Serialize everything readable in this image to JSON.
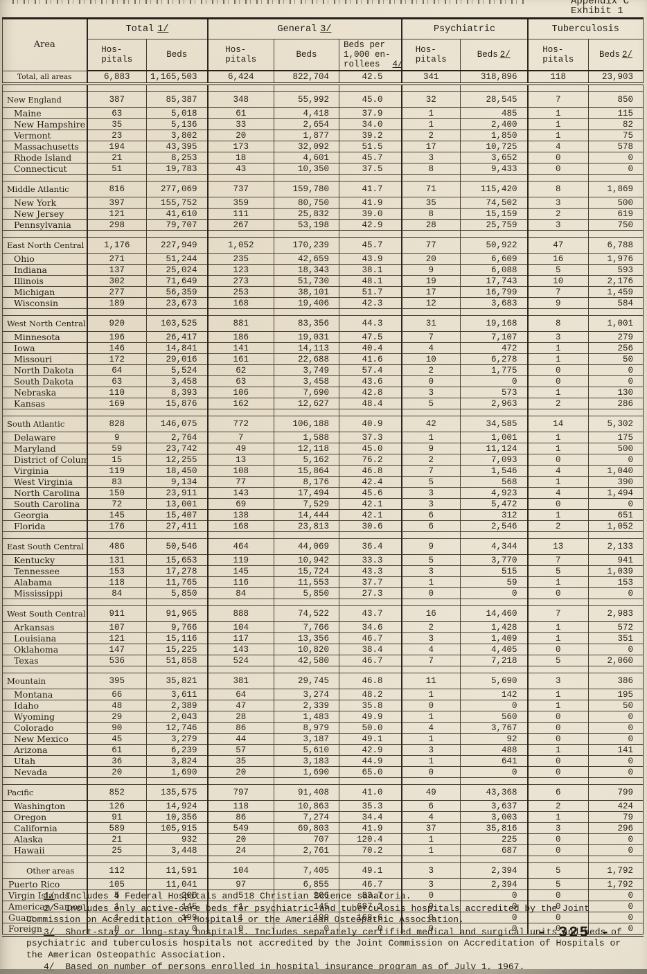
{
  "document": {
    "appendix_label": "Appendix C",
    "exhibit_label": "Exhibit 1",
    "page_number": "- 325 -"
  },
  "table": {
    "area_header": "Area",
    "groups": [
      {
        "label": "Total",
        "ref": "1/"
      },
      {
        "label": "General",
        "ref": "3/"
      },
      {
        "label": "Psychiatric",
        "ref": ""
      },
      {
        "label": "Tuberculosis",
        "ref": ""
      }
    ],
    "sub": [
      {
        "label": "Hos-\npitals",
        "ref": ""
      },
      {
        "label": "Beds",
        "ref": ""
      },
      {
        "label": "Hos-\npitals",
        "ref": ""
      },
      {
        "label": "Beds",
        "ref": ""
      },
      {
        "label": "Beds per\n1,000 en-\nrollees",
        "ref": "4/"
      },
      {
        "label": "Hos-\npitals",
        "ref": ""
      },
      {
        "label": "Beds",
        "ref": "2/"
      },
      {
        "label": "Hos-\npitals",
        "ref": ""
      },
      {
        "label": "Beds",
        "ref": "2/"
      }
    ],
    "rows": [
      {
        "t": "total",
        "area": "Total, all areas",
        "v": [
          "6,883",
          "1,165,503",
          "6,424",
          "822,704",
          "42.5",
          "341",
          "318,896",
          "118",
          "23,903"
        ]
      },
      {
        "t": "gap"
      },
      {
        "t": "region",
        "area": "New England",
        "v": [
          "387",
          "85,387",
          "348",
          "55,992",
          "45.0",
          "32",
          "28,545",
          "7",
          "850"
        ]
      },
      {
        "t": "state",
        "area": "Maine",
        "v": [
          "63",
          "5,018",
          "61",
          "4,418",
          "37.9",
          "1",
          "485",
          "1",
          "115"
        ]
      },
      {
        "t": "state",
        "area": "New Hampshire",
        "v": [
          "35",
          "5,136",
          "33",
          "2,654",
          "34.0",
          "1",
          "2,400",
          "1",
          "82"
        ]
      },
      {
        "t": "state",
        "area": "Vermont",
        "v": [
          "23",
          "3,802",
          "20",
          "1,877",
          "39.2",
          "2",
          "1,850",
          "1",
          "75"
        ]
      },
      {
        "t": "state",
        "area": "Massachusetts",
        "v": [
          "194",
          "43,395",
          "173",
          "32,092",
          "51.5",
          "17",
          "10,725",
          "4",
          "578"
        ]
      },
      {
        "t": "state",
        "area": "Rhode Island",
        "v": [
          "21",
          "8,253",
          "18",
          "4,601",
          "45.7",
          "3",
          "3,652",
          "0",
          "0"
        ]
      },
      {
        "t": "state",
        "area": "Connecticut",
        "v": [
          "51",
          "19,783",
          "43",
          "10,350",
          "37.5",
          "8",
          "9,433",
          "0",
          "0"
        ]
      },
      {
        "t": "gap"
      },
      {
        "t": "region",
        "area": "Middle Atlantic",
        "v": [
          "816",
          "277,069",
          "737",
          "159,780",
          "41.7",
          "71",
          "115,420",
          "8",
          "1,869"
        ]
      },
      {
        "t": "state",
        "area": "New York",
        "v": [
          "397",
          "155,752",
          "359",
          "80,750",
          "41.9",
          "35",
          "74,502",
          "3",
          "500"
        ]
      },
      {
        "t": "state",
        "area": "New Jersey",
        "v": [
          "121",
          "41,610",
          "111",
          "25,832",
          "39.0",
          "8",
          "15,159",
          "2",
          "619"
        ]
      },
      {
        "t": "state",
        "area": "Pennsylvania",
        "v": [
          "298",
          "79,707",
          "267",
          "53,198",
          "42.9",
          "28",
          "25,759",
          "3",
          "750"
        ]
      },
      {
        "t": "gap"
      },
      {
        "t": "region",
        "area": "East North Central",
        "v": [
          "1,176",
          "227,949",
          "1,052",
          "170,239",
          "45.7",
          "77",
          "50,922",
          "47",
          "6,788"
        ]
      },
      {
        "t": "state",
        "area": "Ohio",
        "v": [
          "271",
          "51,244",
          "235",
          "42,659",
          "43.9",
          "20",
          "6,609",
          "16",
          "1,976"
        ]
      },
      {
        "t": "state",
        "area": "Indiana",
        "v": [
          "137",
          "25,024",
          "123",
          "18,343",
          "38.1",
          "9",
          "6,088",
          "5",
          "593"
        ]
      },
      {
        "t": "state",
        "area": "Illinois",
        "v": [
          "302",
          "71,649",
          "273",
          "51,730",
          "48.1",
          "19",
          "17,743",
          "10",
          "2,176"
        ]
      },
      {
        "t": "state",
        "area": "Michigan",
        "v": [
          "277",
          "56,359",
          "253",
          "38,101",
          "51.7",
          "17",
          "16,799",
          "7",
          "1,459"
        ]
      },
      {
        "t": "state",
        "area": "Wisconsin",
        "v": [
          "189",
          "23,673",
          "168",
          "19,406",
          "42.3",
          "12",
          "3,683",
          "9",
          "584"
        ]
      },
      {
        "t": "gap"
      },
      {
        "t": "region",
        "area": "West North Central",
        "v": [
          "920",
          "103,525",
          "881",
          "83,356",
          "44.3",
          "31",
          "19,168",
          "8",
          "1,001"
        ]
      },
      {
        "t": "state",
        "area": "Minnesota",
        "v": [
          "196",
          "26,417",
          "186",
          "19,031",
          "47.5",
          "7",
          "7,107",
          "3",
          "279"
        ]
      },
      {
        "t": "state",
        "area": "Iowa",
        "v": [
          "146",
          "14,841",
          "141",
          "14,113",
          "40.4",
          "4",
          "472",
          "1",
          "256"
        ]
      },
      {
        "t": "state",
        "area": "Missouri",
        "v": [
          "172",
          "29,016",
          "161",
          "22,688",
          "41.6",
          "10",
          "6,278",
          "1",
          "50"
        ]
      },
      {
        "t": "state",
        "area": "North Dakota",
        "v": [
          "64",
          "5,524",
          "62",
          "3,749",
          "57.4",
          "2",
          "1,775",
          "0",
          "0"
        ]
      },
      {
        "t": "state",
        "area": "South Dakota",
        "v": [
          "63",
          "3,458",
          "63",
          "3,458",
          "43.6",
          "0",
          "0",
          "0",
          "0"
        ]
      },
      {
        "t": "state",
        "area": "Nebraska",
        "v": [
          "110",
          "8,393",
          "106",
          "7,690",
          "42.8",
          "3",
          "573",
          "1",
          "130"
        ]
      },
      {
        "t": "state",
        "area": "Kansas",
        "v": [
          "169",
          "15,876",
          "162",
          "12,627",
          "48.4",
          "5",
          "2,963",
          "2",
          "286"
        ]
      },
      {
        "t": "gap"
      },
      {
        "t": "region",
        "area": "South Atlantic",
        "v": [
          "828",
          "146,075",
          "772",
          "106,188",
          "40.9",
          "42",
          "34,585",
          "14",
          "5,302"
        ]
      },
      {
        "t": "state",
        "area": "Delaware",
        "v": [
          "9",
          "2,764",
          "7",
          "1,588",
          "37.3",
          "1",
          "1,001",
          "1",
          "175"
        ]
      },
      {
        "t": "state",
        "area": "Maryland",
        "v": [
          "59",
          "23,742",
          "49",
          "12,118",
          "45.0",
          "9",
          "11,124",
          "1",
          "500"
        ]
      },
      {
        "t": "state",
        "area": "District of Columbia",
        "v": [
          "15",
          "12,255",
          "13",
          "5,162",
          "76.2",
          "2",
          "7,093",
          "0",
          "0"
        ]
      },
      {
        "t": "state",
        "area": "Virginia",
        "v": [
          "119",
          "18,450",
          "108",
          "15,864",
          "46.8",
          "7",
          "1,546",
          "4",
          "1,040"
        ]
      },
      {
        "t": "state",
        "area": "West Virginia",
        "v": [
          "83",
          "9,134",
          "77",
          "8,176",
          "42.4",
          "5",
          "568",
          "1",
          "390"
        ]
      },
      {
        "t": "state",
        "area": "North Carolina",
        "v": [
          "150",
          "23,911",
          "143",
          "17,494",
          "45.6",
          "3",
          "4,923",
          "4",
          "1,494"
        ]
      },
      {
        "t": "state",
        "area": "South Carolina",
        "v": [
          "72",
          "13,001",
          "69",
          "7,529",
          "42.1",
          "3",
          "5,472",
          "0",
          "0"
        ]
      },
      {
        "t": "state",
        "area": "Georgia",
        "v": [
          "145",
          "15,407",
          "138",
          "14,444",
          "42.1",
          "6",
          "312",
          "1",
          "651"
        ]
      },
      {
        "t": "state",
        "area": "Florida",
        "v": [
          "176",
          "27,411",
          "168",
          "23,813",
          "30.6",
          "6",
          "2,546",
          "2",
          "1,052"
        ]
      },
      {
        "t": "gap"
      },
      {
        "t": "region",
        "area": "East South Central",
        "v": [
          "486",
          "50,546",
          "464",
          "44,069",
          "36.4",
          "9",
          "4,344",
          "13",
          "2,133"
        ]
      },
      {
        "t": "state",
        "area": "Kentucky",
        "v": [
          "131",
          "15,653",
          "119",
          "10,942",
          "33.3",
          "5",
          "3,770",
          "7",
          "941"
        ]
      },
      {
        "t": "state",
        "area": "Tennessee",
        "v": [
          "153",
          "17,278",
          "145",
          "15,724",
          "43.3",
          "3",
          "515",
          "5",
          "1,039"
        ]
      },
      {
        "t": "state",
        "area": "Alabama",
        "v": [
          "118",
          "11,765",
          "116",
          "11,553",
          "37.7",
          "1",
          "59",
          "1",
          "153"
        ]
      },
      {
        "t": "state",
        "area": "Mississippi",
        "v": [
          "84",
          "5,850",
          "84",
          "5,850",
          "27.3",
          "0",
          "0",
          "0",
          "0"
        ]
      },
      {
        "t": "gap"
      },
      {
        "t": "region",
        "area": "West South Central",
        "v": [
          "911",
          "91,965",
          "888",
          "74,522",
          "43.7",
          "16",
          "14,460",
          "7",
          "2,983"
        ]
      },
      {
        "t": "state",
        "area": "Arkansas",
        "v": [
          "107",
          "9,766",
          "104",
          "7,766",
          "34.6",
          "2",
          "1,428",
          "1",
          "572"
        ]
      },
      {
        "t": "state",
        "area": "Louisiana",
        "v": [
          "121",
          "15,116",
          "117",
          "13,356",
          "46.7",
          "3",
          "1,409",
          "1",
          "351"
        ]
      },
      {
        "t": "state",
        "area": "Oklahoma",
        "v": [
          "147",
          "15,225",
          "143",
          "10,820",
          "38.4",
          "4",
          "4,405",
          "0",
          "0"
        ]
      },
      {
        "t": "state",
        "area": "Texas",
        "v": [
          "536",
          "51,858",
          "524",
          "42,580",
          "46.7",
          "7",
          "7,218",
          "5",
          "2,060"
        ]
      },
      {
        "t": "gap"
      },
      {
        "t": "region",
        "area": "Mountain",
        "v": [
          "395",
          "35,821",
          "381",
          "29,745",
          "46.8",
          "11",
          "5,690",
          "3",
          "386"
        ]
      },
      {
        "t": "state",
        "area": "Montana",
        "v": [
          "66",
          "3,611",
          "64",
          "3,274",
          "48.2",
          "1",
          "142",
          "1",
          "195"
        ]
      },
      {
        "t": "state",
        "area": "Idaho",
        "v": [
          "48",
          "2,389",
          "47",
          "2,339",
          "35.8",
          "0",
          "0",
          "1",
          "50"
        ]
      },
      {
        "t": "state",
        "area": "Wyoming",
        "v": [
          "29",
          "2,043",
          "28",
          "1,483",
          "49.9",
          "1",
          "560",
          "0",
          "0"
        ]
      },
      {
        "t": "state",
        "area": "Colorado",
        "v": [
          "90",
          "12,746",
          "86",
          "8,979",
          "50.0",
          "4",
          "3,767",
          "0",
          "0"
        ]
      },
      {
        "t": "state",
        "area": "New Mexico",
        "v": [
          "45",
          "3,279",
          "44",
          "3,187",
          "49.1",
          "1",
          "92",
          "0",
          "0"
        ]
      },
      {
        "t": "state",
        "area": "Arizona",
        "v": [
          "61",
          "6,239",
          "57",
          "5,610",
          "42.9",
          "3",
          "488",
          "1",
          "141"
        ]
      },
      {
        "t": "state",
        "area": "Utah",
        "v": [
          "36",
          "3,824",
          "35",
          "3,183",
          "44.9",
          "1",
          "641",
          "0",
          "0"
        ]
      },
      {
        "t": "state",
        "area": "Nevada",
        "v": [
          "20",
          "1,690",
          "20",
          "1,690",
          "65.0",
          "0",
          "0",
          "0",
          "0"
        ]
      },
      {
        "t": "gap"
      },
      {
        "t": "region",
        "area": "Pacific",
        "v": [
          "852",
          "135,575",
          "797",
          "91,408",
          "41.0",
          "49",
          "43,368",
          "6",
          "799"
        ]
      },
      {
        "t": "state",
        "area": "Washington",
        "v": [
          "126",
          "14,924",
          "118",
          "10,863",
          "35.3",
          "6",
          "3,637",
          "2",
          "424"
        ]
      },
      {
        "t": "state",
        "area": "Oregon",
        "v": [
          "91",
          "10,356",
          "86",
          "7,274",
          "34.4",
          "4",
          "3,003",
          "1",
          "79"
        ]
      },
      {
        "t": "state",
        "area": "California",
        "v": [
          "589",
          "105,915",
          "549",
          "69,803",
          "41.9",
          "37",
          "35,816",
          "3",
          "296"
        ]
      },
      {
        "t": "state",
        "area": "Alaska",
        "v": [
          "21",
          "932",
          "20",
          "707",
          "120.4",
          "1",
          "225",
          "0",
          "0"
        ]
      },
      {
        "t": "state",
        "area": "Hawaii",
        "v": [
          "25",
          "3,448",
          "24",
          "2,761",
          "70.2",
          "1",
          "687",
          "0",
          "0"
        ]
      },
      {
        "t": "gap"
      },
      {
        "t": "region",
        "area": "Other areas",
        "pad": 34,
        "v": [
          "112",
          "11,591",
          "104",
          "7,405",
          "49.1",
          "3",
          "2,394",
          "5",
          "1,792"
        ]
      },
      {
        "t": "state",
        "area": "Puerto Rico",
        "pad": 8,
        "v": [
          "105",
          "11,041",
          "97",
          "6,855",
          "46.7",
          "3",
          "2,394",
          "5",
          "1,792"
        ]
      },
      {
        "t": "state",
        "area": "Virgin Islands",
        "pad": 8,
        "v": [
          "5",
          "206",
          "5",
          "206",
          "83.7",
          "0",
          "0",
          "0",
          "0"
        ]
      },
      {
        "t": "state",
        "area": "American Samoa",
        "pad": 8,
        "v": [
          "1",
          "145",
          "1",
          "145",
          "687.2",
          "0",
          "0",
          "0",
          "0"
        ]
      },
      {
        "t": "state",
        "area": "Guam",
        "pad": 8,
        "v": [
          "1",
          "199",
          "1",
          "199",
          "168.6",
          "0",
          "0",
          "0",
          "0"
        ]
      },
      {
        "t": "state",
        "area": "Foreign",
        "pad": 8,
        "v": [
          "0",
          "0",
          "0",
          "0",
          "0",
          "0",
          "0",
          "0",
          "0"
        ]
      }
    ]
  },
  "footnotes": [
    {
      "ref": "1/",
      "text": "Includes 4 Federal Hospitals and 18 Christian Science sanatoria."
    },
    {
      "ref": "2/",
      "text": "Includes only active-care beds for psychiatric and tuberculosis hospitals accredited by the Joint Commission on Accreditation of Hospitals or the American Osteopathic Association."
    },
    {
      "ref": "3/",
      "text": "Short-stay or long-stay hospitals.  Includes separately certified medical and surgical units and beds of psychiatric and tuberculosis hospitals not accredited by the Joint Commission on Accreditation of Hospitals or the American Osteopathic Association."
    },
    {
      "ref": "4/",
      "text": "Based on number of persons enrolled in hospital insurance program as of July 1, 1967."
    }
  ]
}
